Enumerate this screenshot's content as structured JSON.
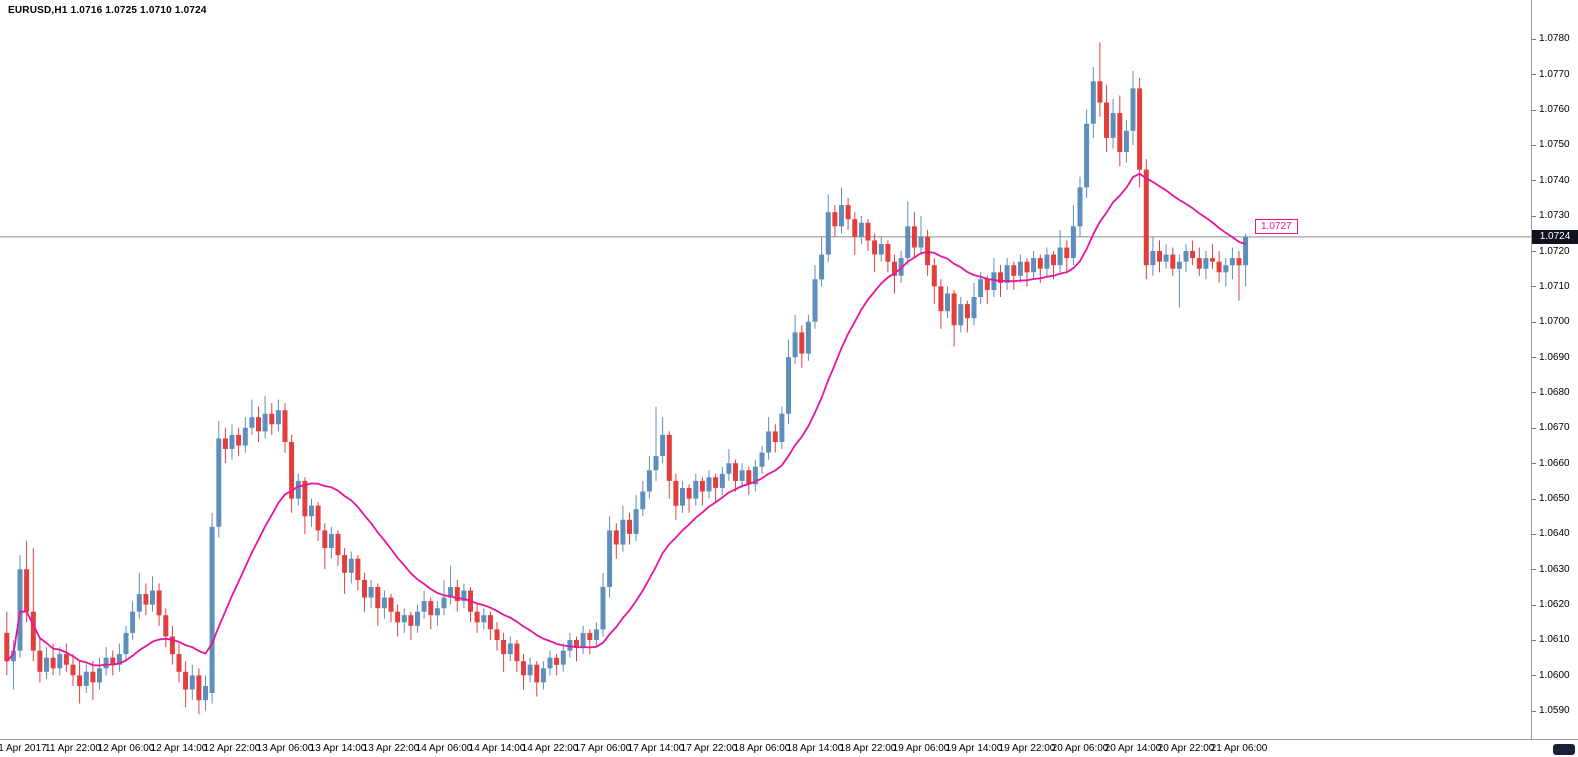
{
  "header": {
    "title_ohlc": "EURUSD,H1 1.0716 1.0725 1.0710 1.0724"
  },
  "chart_data": {
    "type": "candlestick",
    "symbol": "EURUSD",
    "timeframe": "H1",
    "current_bar": {
      "open": 1.0716,
      "high": 1.0725,
      "low": 1.071,
      "close": 1.0724
    },
    "bid": 1.0724,
    "bid_label": "1.0724",
    "ma_label": "1.0727",
    "ma_value": 1.0727,
    "ma_period": 24,
    "legend": [
      "moving-average-line"
    ],
    "grid": false,
    "y_range": [
      1.0582,
      1.0791
    ],
    "y_ticks": [
      "1.0780",
      "1.0770",
      "1.0760",
      "1.0750",
      "1.0740",
      "1.0730",
      "1.0720",
      "1.0710",
      "1.0700",
      "1.0690",
      "1.0680",
      "1.0670",
      "1.0660",
      "1.0650",
      "1.0640",
      "1.0630",
      "1.0620",
      "1.0610",
      "1.0600",
      "1.0590"
    ],
    "x_ticks": [
      {
        "label": "11 Apr 2017",
        "index": 2
      },
      {
        "label": "11 Apr 22:00",
        "index": 10
      },
      {
        "label": "12 Apr 06:00",
        "index": 18
      },
      {
        "label": "12 Apr 14:00",
        "index": 26
      },
      {
        "label": "12 Apr 22:00",
        "index": 34
      },
      {
        "label": "13 Apr 06:00",
        "index": 42
      },
      {
        "label": "13 Apr 14:00",
        "index": 50
      },
      {
        "label": "13 Apr 22:00",
        "index": 58
      },
      {
        "label": "14 Apr 06:00",
        "index": 66
      },
      {
        "label": "14 Apr 14:00",
        "index": 74
      },
      {
        "label": "14 Apr 22:00",
        "index": 82
      },
      {
        "label": "17 Apr 06:00",
        "index": 90
      },
      {
        "label": "17 Apr 14:00",
        "index": 98
      },
      {
        "label": "17 Apr 22:00",
        "index": 106
      },
      {
        "label": "18 Apr 06:00",
        "index": 114
      },
      {
        "label": "18 Apr 14:00",
        "index": 122
      },
      {
        "label": "18 Apr 22:00",
        "index": 130
      },
      {
        "label": "19 Apr 06:00",
        "index": 138
      },
      {
        "label": "19 Apr 14:00",
        "index": 146
      },
      {
        "label": "19 Apr 22:00",
        "index": 154
      },
      {
        "label": "20 Apr 06:00",
        "index": 162
      },
      {
        "label": "20 Apr 14:00",
        "index": 170
      },
      {
        "label": "20 Apr 22:00",
        "index": 178
      },
      {
        "label": "21 Apr 06:00",
        "index": 186
      }
    ],
    "colors": {
      "bull": "#5e8fbc",
      "bear": "#e23e3e",
      "ma": "#e6159e",
      "bid_line": "#8a8a8a",
      "bid_badge_bg": "#10131e",
      "axis_text": "#000000",
      "background": "#ffffff"
    },
    "candles": [
      [
        1.0612,
        1.0618,
        1.06,
        1.0604
      ],
      [
        1.0604,
        1.061,
        1.0596,
        1.0607
      ],
      [
        1.0607,
        1.0634,
        1.0605,
        1.063
      ],
      [
        1.063,
        1.0638,
        1.0615,
        1.0618
      ],
      [
        1.0618,
        1.0636,
        1.0604,
        1.0607
      ],
      [
        1.0607,
        1.0611,
        1.0598,
        1.0601
      ],
      [
        1.0601,
        1.0608,
        1.0599,
        1.0605
      ],
      [
        1.0605,
        1.0609,
        1.06,
        1.0602
      ],
      [
        1.0602,
        1.0608,
        1.06,
        1.0606
      ],
      [
        1.0606,
        1.0609,
        1.0601,
        1.0603
      ],
      [
        1.0603,
        1.0606,
        1.0597,
        1.06
      ],
      [
        1.06,
        1.0604,
        1.0592,
        1.0597
      ],
      [
        1.0597,
        1.0603,
        1.0595,
        1.0601
      ],
      [
        1.0601,
        1.0604,
        1.0593,
        1.0598
      ],
      [
        1.0598,
        1.0605,
        1.0596,
        1.0602
      ],
      [
        1.0602,
        1.0608,
        1.06,
        1.0605
      ],
      [
        1.0605,
        1.0607,
        1.06,
        1.0603
      ],
      [
        1.0603,
        1.0609,
        1.0601,
        1.0606
      ],
      [
        1.0606,
        1.0614,
        1.0604,
        1.0612
      ],
      [
        1.0612,
        1.0621,
        1.061,
        1.0618
      ],
      [
        1.0618,
        1.0629,
        1.0616,
        1.0623
      ],
      [
        1.0623,
        1.0626,
        1.0617,
        1.062
      ],
      [
        1.062,
        1.0628,
        1.0618,
        1.0624
      ],
      [
        1.0624,
        1.0626,
        1.0614,
        1.0617
      ],
      [
        1.0617,
        1.0619,
        1.0608,
        1.0611
      ],
      [
        1.0611,
        1.0614,
        1.0603,
        1.0606
      ],
      [
        1.0606,
        1.0609,
        1.0598,
        1.0601
      ],
      [
        1.0601,
        1.0604,
        1.0591,
        1.0596
      ],
      [
        1.0596,
        1.0603,
        1.0593,
        1.06
      ],
      [
        1.06,
        1.0602,
        1.0589,
        1.0593
      ],
      [
        1.0593,
        1.06,
        1.059,
        1.0597
      ],
      [
        1.0595,
        1.0646,
        1.0592,
        1.0642
      ],
      [
        1.0642,
        1.0672,
        1.0639,
        1.0667
      ],
      [
        1.0667,
        1.067,
        1.066,
        1.0664
      ],
      [
        1.0664,
        1.0671,
        1.0661,
        1.0668
      ],
      [
        1.0668,
        1.067,
        1.0662,
        1.0665
      ],
      [
        1.0665,
        1.0673,
        1.0663,
        1.067
      ],
      [
        1.067,
        1.0678,
        1.0668,
        1.0673
      ],
      [
        1.0673,
        1.0676,
        1.0666,
        1.0669
      ],
      [
        1.0669,
        1.0679,
        1.0667,
        1.0674
      ],
      [
        1.0674,
        1.0677,
        1.0668,
        1.0671
      ],
      [
        1.0671,
        1.0678,
        1.0669,
        1.0675
      ],
      [
        1.0675,
        1.0677,
        1.0663,
        1.0666
      ],
      [
        1.0666,
        1.0668,
        1.0646,
        1.065
      ],
      [
        1.065,
        1.0657,
        1.0648,
        1.0655
      ],
      [
        1.0655,
        1.0656,
        1.064,
        1.0645
      ],
      [
        1.0645,
        1.065,
        1.0642,
        1.0648
      ],
      [
        1.0648,
        1.0649,
        1.0638,
        1.0641
      ],
      [
        1.0641,
        1.0643,
        1.063,
        1.0636
      ],
      [
        1.0636,
        1.0642,
        1.0633,
        1.064
      ],
      [
        1.064,
        1.0641,
        1.0631,
        1.0634
      ],
      [
        1.0634,
        1.0636,
        1.0623,
        1.0629
      ],
      [
        1.0629,
        1.0635,
        1.0626,
        1.0633
      ],
      [
        1.0633,
        1.0634,
        1.0624,
        1.0627
      ],
      [
        1.0627,
        1.0629,
        1.0618,
        1.0622
      ],
      [
        1.0622,
        1.0627,
        1.0619,
        1.0625
      ],
      [
        1.0625,
        1.0626,
        1.0614,
        1.0619
      ],
      [
        1.0619,
        1.0624,
        1.0616,
        1.0622
      ],
      [
        1.0622,
        1.0623,
        1.0615,
        1.0618
      ],
      [
        1.0618,
        1.062,
        1.0611,
        1.0615
      ],
      [
        1.0615,
        1.0619,
        1.0612,
        1.0617
      ],
      [
        1.0617,
        1.0618,
        1.061,
        1.0614
      ],
      [
        1.0614,
        1.062,
        1.0612,
        1.0618
      ],
      [
        1.0618,
        1.0624,
        1.0616,
        1.0621
      ],
      [
        1.0621,
        1.0622,
        1.0613,
        1.0617
      ],
      [
        1.0617,
        1.0621,
        1.0614,
        1.0619
      ],
      [
        1.0619,
        1.0627,
        1.0617,
        1.0622
      ],
      [
        1.0622,
        1.0631,
        1.062,
        1.0625
      ],
      [
        1.0625,
        1.0627,
        1.0618,
        1.0621
      ],
      [
        1.0621,
        1.0626,
        1.0619,
        1.0624
      ],
      [
        1.0624,
        1.0625,
        1.0615,
        1.0618
      ],
      [
        1.0618,
        1.062,
        1.0612,
        1.0615
      ],
      [
        1.0615,
        1.0619,
        1.0613,
        1.0617
      ],
      [
        1.0617,
        1.0618,
        1.061,
        1.0613
      ],
      [
        1.0613,
        1.0615,
        1.0607,
        1.061
      ],
      [
        1.061,
        1.0612,
        1.0601,
        1.0606
      ],
      [
        1.0606,
        1.0611,
        1.0604,
        1.0609
      ],
      [
        1.0609,
        1.061,
        1.0601,
        1.0604
      ],
      [
        1.0604,
        1.0606,
        1.0596,
        1.06
      ],
      [
        1.06,
        1.0605,
        1.0598,
        1.0603
      ],
      [
        1.0603,
        1.0604,
        1.0594,
        1.0598
      ],
      [
        1.0598,
        1.0604,
        1.0596,
        1.0602
      ],
      [
        1.0602,
        1.0607,
        1.06,
        1.0605
      ],
      [
        1.0605,
        1.0606,
        1.06,
        1.0603
      ],
      [
        1.0603,
        1.0609,
        1.0601,
        1.0607
      ],
      [
        1.0607,
        1.0612,
        1.0605,
        1.061
      ],
      [
        1.061,
        1.0611,
        1.0604,
        1.0608
      ],
      [
        1.0608,
        1.0614,
        1.0606,
        1.0612
      ],
      [
        1.0612,
        1.0613,
        1.0606,
        1.061
      ],
      [
        1.061,
        1.0615,
        1.0608,
        1.0613
      ],
      [
        1.0613,
        1.0629,
        1.0611,
        1.0625
      ],
      [
        1.0625,
        1.0645,
        1.0622,
        1.0641
      ],
      [
        1.0641,
        1.0643,
        1.0633,
        1.0637
      ],
      [
        1.0637,
        1.0648,
        1.0635,
        1.0644
      ],
      [
        1.0644,
        1.0646,
        1.0637,
        1.064
      ],
      [
        1.064,
        1.0651,
        1.0638,
        1.0647
      ],
      [
        1.0647,
        1.0655,
        1.0645,
        1.0652
      ],
      [
        1.0652,
        1.0662,
        1.065,
        1.0658
      ],
      [
        1.0658,
        1.0676,
        1.0655,
        1.0662
      ],
      [
        1.0662,
        1.0673,
        1.066,
        1.0668
      ],
      [
        1.0668,
        1.0669,
        1.065,
        1.0655
      ],
      [
        1.0655,
        1.0657,
        1.0644,
        1.0648
      ],
      [
        1.0648,
        1.0655,
        1.0646,
        1.0653
      ],
      [
        1.0653,
        1.0654,
        1.0646,
        1.065
      ],
      [
        1.065,
        1.0657,
        1.0648,
        1.0655
      ],
      [
        1.0655,
        1.0656,
        1.0648,
        1.0652
      ],
      [
        1.0652,
        1.0658,
        1.065,
        1.0656
      ],
      [
        1.0656,
        1.0657,
        1.0649,
        1.0653
      ],
      [
        1.0653,
        1.0659,
        1.0651,
        1.0657
      ],
      [
        1.0657,
        1.0664,
        1.0655,
        1.066
      ],
      [
        1.066,
        1.0661,
        1.0652,
        1.0655
      ],
      [
        1.0655,
        1.066,
        1.0653,
        1.0658
      ],
      [
        1.0658,
        1.0659,
        1.0651,
        1.0654
      ],
      [
        1.0654,
        1.0661,
        1.0652,
        1.0659
      ],
      [
        1.0659,
        1.0665,
        1.0657,
        1.0663
      ],
      [
        1.0663,
        1.0673,
        1.0661,
        1.0669
      ],
      [
        1.0669,
        1.0671,
        1.0663,
        1.0666
      ],
      [
        1.0666,
        1.0676,
        1.0664,
        1.0674
      ],
      [
        1.0674,
        1.0695,
        1.0671,
        1.069
      ],
      [
        1.069,
        1.0702,
        1.0688,
        1.0697
      ],
      [
        1.0697,
        1.0699,
        1.0687,
        1.0691
      ],
      [
        1.0691,
        1.0702,
        1.0689,
        1.07
      ],
      [
        1.07,
        1.0716,
        1.0698,
        1.0712
      ],
      [
        1.0712,
        1.0724,
        1.071,
        1.0719
      ],
      [
        1.0719,
        1.0736,
        1.0717,
        1.0731
      ],
      [
        1.0731,
        1.0733,
        1.0724,
        1.0727
      ],
      [
        1.0727,
        1.0738,
        1.0725,
        1.0733
      ],
      [
        1.0733,
        1.0735,
        1.0726,
        1.0729
      ],
      [
        1.0729,
        1.0731,
        1.0719,
        1.0724
      ],
      [
        1.0724,
        1.073,
        1.0722,
        1.0728
      ],
      [
        1.0728,
        1.0729,
        1.072,
        1.0723
      ],
      [
        1.0723,
        1.0725,
        1.0714,
        1.0719
      ],
      [
        1.0719,
        1.0724,
        1.0717,
        1.0722
      ],
      [
        1.0722,
        1.0723,
        1.0714,
        1.0717
      ],
      [
        1.0717,
        1.0719,
        1.0708,
        1.0713
      ],
      [
        1.0713,
        1.072,
        1.0711,
        1.0718
      ],
      [
        1.0718,
        1.0734,
        1.0716,
        1.0727
      ],
      [
        1.0727,
        1.0731,
        1.0718,
        1.0721
      ],
      [
        1.0721,
        1.073,
        1.0719,
        1.0724
      ],
      [
        1.0724,
        1.0726,
        1.0713,
        1.0716
      ],
      [
        1.0716,
        1.0718,
        1.0705,
        1.071
      ],
      [
        1.071,
        1.0712,
        1.0698,
        1.0703
      ],
      [
        1.0703,
        1.071,
        1.0701,
        1.0708
      ],
      [
        1.0708,
        1.0709,
        1.0693,
        1.0699
      ],
      [
        1.0699,
        1.0707,
        1.0697,
        1.0705
      ],
      [
        1.0705,
        1.0706,
        1.0697,
        1.0701
      ],
      [
        1.0701,
        1.0711,
        1.0699,
        1.0707
      ],
      [
        1.0707,
        1.0714,
        1.0705,
        1.0712
      ],
      [
        1.0712,
        1.0713,
        1.0705,
        1.0709
      ],
      [
        1.0709,
        1.0718,
        1.0707,
        1.0714
      ],
      [
        1.0714,
        1.0716,
        1.0707,
        1.0711
      ],
      [
        1.0711,
        1.0718,
        1.0709,
        1.0716
      ],
      [
        1.0716,
        1.0717,
        1.0709,
        1.0713
      ],
      [
        1.0713,
        1.0719,
        1.0711,
        1.0717
      ],
      [
        1.0717,
        1.0718,
        1.071,
        1.0714
      ],
      [
        1.0714,
        1.072,
        1.0712,
        1.0718
      ],
      [
        1.0718,
        1.0719,
        1.0711,
        1.0715
      ],
      [
        1.0715,
        1.0721,
        1.0713,
        1.0719
      ],
      [
        1.0719,
        1.072,
        1.0712,
        1.0716
      ],
      [
        1.0716,
        1.0726,
        1.0714,
        1.0721
      ],
      [
        1.0721,
        1.0723,
        1.0714,
        1.0718
      ],
      [
        1.0718,
        1.0733,
        1.0716,
        1.0727
      ],
      [
        1.0727,
        1.0741,
        1.0724,
        1.0738
      ],
      [
        1.0738,
        1.076,
        1.0735,
        1.0756
      ],
      [
        1.0756,
        1.0772,
        1.0752,
        1.0768
      ],
      [
        1.0768,
        1.0779,
        1.0758,
        1.0762
      ],
      [
        1.0762,
        1.0767,
        1.0748,
        1.0752
      ],
      [
        1.0752,
        1.0763,
        1.0749,
        1.0759
      ],
      [
        1.0759,
        1.0764,
        1.0744,
        1.0748
      ],
      [
        1.0748,
        1.0757,
        1.0745,
        1.0754
      ],
      [
        1.0754,
        1.0771,
        1.075,
        1.0766
      ],
      [
        1.0766,
        1.0769,
        1.0738,
        1.0743
      ],
      [
        1.0743,
        1.0746,
        1.0712,
        1.0716
      ],
      [
        1.0716,
        1.0724,
        1.0713,
        1.072
      ],
      [
        1.072,
        1.0723,
        1.0714,
        1.0717
      ],
      [
        1.0717,
        1.0722,
        1.0715,
        1.0719
      ],
      [
        1.0719,
        1.0721,
        1.0713,
        1.0715
      ],
      [
        1.0715,
        1.0719,
        1.0704,
        1.0717
      ],
      [
        1.0717,
        1.0722,
        1.0714,
        1.072
      ],
      [
        1.072,
        1.0723,
        1.0716,
        1.0718
      ],
      [
        1.0718,
        1.0721,
        1.0713,
        1.0715
      ],
      [
        1.0715,
        1.072,
        1.0712,
        1.0718
      ],
      [
        1.0718,
        1.0722,
        1.0715,
        1.0717
      ],
      [
        1.0717,
        1.072,
        1.0711,
        1.0714
      ],
      [
        1.0714,
        1.0718,
        1.071,
        1.0716
      ],
      [
        1.0716,
        1.0721,
        1.0712,
        1.0718
      ],
      [
        1.0718,
        1.072,
        1.0706,
        1.0716
      ],
      [
        1.0716,
        1.0725,
        1.071,
        1.0724
      ]
    ]
  }
}
